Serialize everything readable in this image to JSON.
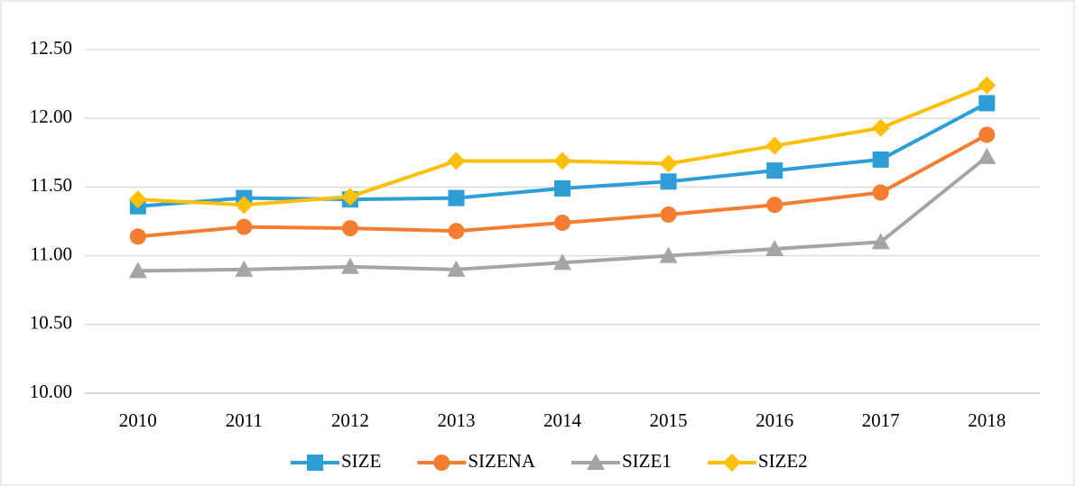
{
  "chart_data": {
    "type": "line",
    "categories": [
      "2010",
      "2011",
      "2012",
      "2013",
      "2014",
      "2015",
      "2016",
      "2017",
      "2018"
    ],
    "series": [
      {
        "name": "SIZE",
        "color": "#2e9fd6",
        "marker": "square",
        "values": [
          11.36,
          11.42,
          11.41,
          11.42,
          11.49,
          11.54,
          11.62,
          11.7,
          12.11
        ]
      },
      {
        "name": "SIZENA",
        "color": "#f47d30",
        "marker": "circle",
        "values": [
          11.14,
          11.21,
          11.2,
          11.18,
          11.24,
          11.3,
          11.37,
          11.46,
          11.88
        ]
      },
      {
        "name": "SIZE1",
        "color": "#a5a5a5",
        "marker": "triangle",
        "values": [
          10.89,
          10.9,
          10.92,
          10.9,
          10.95,
          11.0,
          11.05,
          11.1,
          11.72
        ]
      },
      {
        "name": "SIZE2",
        "color": "#fcc00a",
        "marker": "diamond",
        "values": [
          11.41,
          11.37,
          11.43,
          11.69,
          11.69,
          11.67,
          11.8,
          11.93,
          12.24
        ]
      }
    ],
    "ylim": [
      10,
      12.5
    ],
    "yticks": [
      {
        "value": 10,
        "label": "10.00"
      },
      {
        "value": 10.5,
        "label": "10.50"
      },
      {
        "value": 11,
        "label": "11.00"
      },
      {
        "value": 11.5,
        "label": "11.50"
      },
      {
        "value": 12,
        "label": "12.00"
      },
      {
        "value": 12.5,
        "label": "12.50"
      }
    ],
    "grid": true,
    "legend": "bottom"
  }
}
